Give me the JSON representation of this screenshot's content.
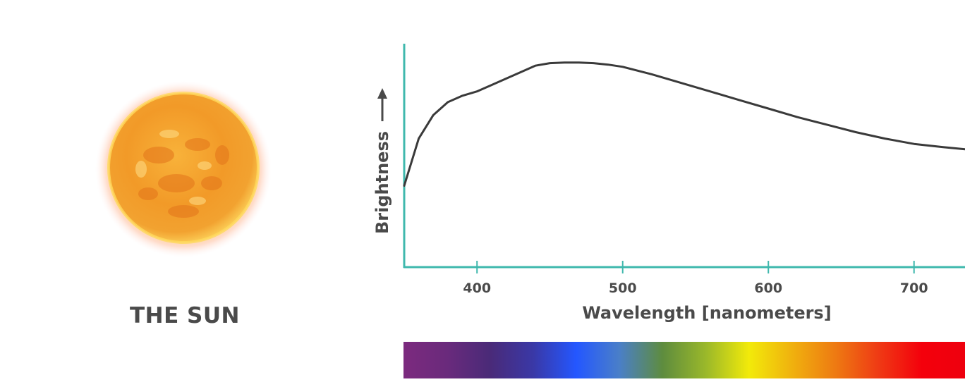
{
  "sun_panel": {
    "label": "THE SUN",
    "icon": "sun-image"
  },
  "chart_data": {
    "type": "line",
    "xlabel": "Wavelength [nanometers]",
    "ylabel": "Brightness",
    "xlim": [
      350,
      735
    ],
    "ylim": [
      0,
      1
    ],
    "xticks": [
      400,
      500,
      600,
      700
    ],
    "yticks": [],
    "grid": false,
    "legend": "none",
    "series": [
      {
        "x": [
          350,
          360,
          370,
          380,
          390,
          400,
          410,
          420,
          430,
          440,
          450,
          460,
          470,
          480,
          490,
          500,
          520,
          540,
          560,
          580,
          600,
          620,
          640,
          660,
          680,
          700,
          720,
          735
        ],
        "values": [
          0.38,
          0.6,
          0.71,
          0.77,
          0.8,
          0.82,
          0.85,
          0.88,
          0.91,
          0.94,
          0.952,
          0.955,
          0.955,
          0.952,
          0.945,
          0.935,
          0.9,
          0.86,
          0.82,
          0.78,
          0.74,
          0.7,
          0.665,
          0.63,
          0.6,
          0.575,
          0.56,
          0.55
        ]
      }
    ],
    "spectrum_bar": {
      "colors": [
        "#7c2a7e",
        "#6a2a7c",
        "#4a2a78",
        "#3a38a6",
        "#2457ff",
        "#4a7fc8",
        "#5e8c3e",
        "#9ab82a",
        "#f2ea0a",
        "#f0b10e",
        "#ee7a12",
        "#ef3a14",
        "#f4000c",
        "#ee000e"
      ]
    },
    "colors": {
      "curve": "#3a3a3a",
      "axis": "#3fb8ad",
      "text": "#4a4a4a"
    }
  }
}
